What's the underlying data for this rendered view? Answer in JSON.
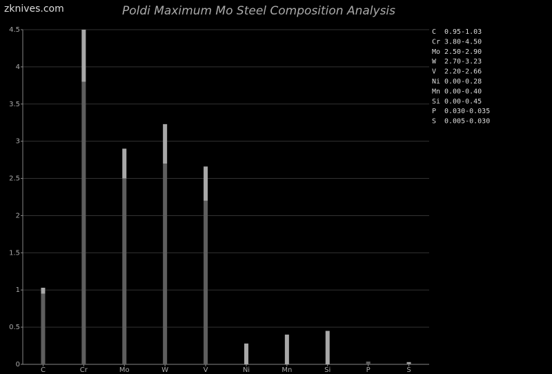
{
  "watermark": "zknives.com",
  "chart_data": {
    "type": "range-bar",
    "title": "Poldi Maximum Mo Steel Composition Analysis",
    "categories": [
      "C",
      "Cr",
      "Mo",
      "W",
      "V",
      "Ni",
      "Mn",
      "Si",
      "P",
      "S"
    ],
    "low": [
      0.95,
      3.8,
      2.5,
      2.7,
      2.2,
      0,
      0,
      0,
      0.03,
      0.005
    ],
    "high": [
      1.03,
      4.5,
      2.9,
      3.23,
      2.66,
      0.28,
      0.4,
      0.45,
      0.035,
      0.03
    ],
    "range_labels": [
      "0.95-1.03",
      "3.80-4.50",
      "2.50-2.90",
      "2.70-3.23",
      "2.20-2.66",
      "0.00-0.28",
      "0.00-0.40",
      "0.00-0.45",
      "0.030-0.035",
      "0.005-0.030"
    ],
    "low_color": "#5e5e5e",
    "high_color": "#a8a8a8",
    "ylim": [
      0,
      4.5
    ],
    "yticks": [
      0,
      0.5,
      1,
      1.5,
      2,
      2.5,
      3,
      3.5,
      4,
      4.5
    ],
    "grid": true
  }
}
